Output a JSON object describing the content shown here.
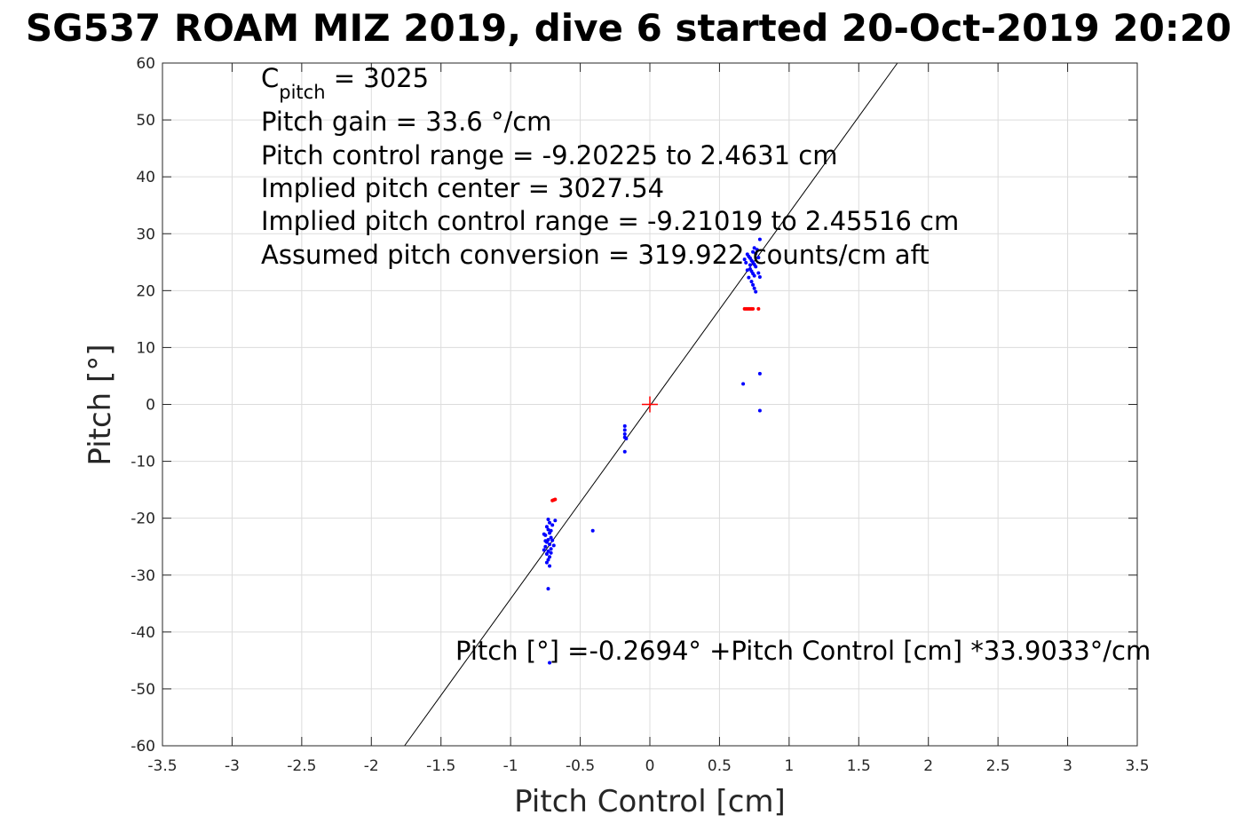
{
  "chart_data": {
    "type": "scatter",
    "title": "SG537 ROAM MIZ 2019, dive 6 started 20-Oct-2019 20:20",
    "xlabel": "Pitch Control [cm]",
    "ylabel": "Pitch [°]",
    "xlim": [
      -3.5,
      3.5
    ],
    "ylim": [
      -60,
      60
    ],
    "xticks": [
      -3.5,
      -3,
      -2.5,
      -2,
      -1.5,
      -1,
      -0.5,
      0,
      0.5,
      1,
      1.5,
      2,
      2.5,
      3,
      3.5
    ],
    "yticks": [
      -60,
      -50,
      -40,
      -30,
      -20,
      -10,
      0,
      10,
      20,
      30,
      40,
      50,
      60
    ],
    "xtick_labels": [
      "-3.5",
      "-3",
      "-2.5",
      "-2",
      "-1.5",
      "-1",
      "-0.5",
      "0",
      "0.5",
      "1",
      "1.5",
      "2",
      "2.5",
      "3",
      "3.5"
    ],
    "ytick_labels": [
      "-60",
      "-50",
      "-40",
      "-30",
      "-20",
      "-10",
      "0",
      "10",
      "20",
      "30",
      "40",
      "50",
      "60"
    ],
    "grid": true,
    "annotations": {
      "cpitch_base": "C",
      "cpitch_sub": "pitch",
      "cpitch_value": " = 3025",
      "lines": [
        "Pitch gain = 33.6 °/cm",
        "Pitch control range = -9.20225 to 2.4631 cm",
        "Implied pitch center = 3027.54",
        "Implied pitch control range = -9.21019 to 2.45516 cm",
        "Assumed pitch conversion = 319.922 counts/cm aft"
      ],
      "fit_equation": "Pitch [°] =-0.2694° +Pitch Control [cm] *33.9033°/cm"
    },
    "fit_line": {
      "intercept": -0.2694,
      "slope": 33.9033,
      "color": "#000000"
    },
    "center_marker": {
      "x": 0,
      "y": 0,
      "color": "#ff0000"
    },
    "series": [
      {
        "color": "#0000ff",
        "points": [
          [
            -0.74,
            -21.5
          ],
          [
            -0.73,
            -22.0
          ],
          [
            -0.72,
            -22.6
          ],
          [
            -0.75,
            -23.0
          ],
          [
            -0.71,
            -23.4
          ],
          [
            -0.73,
            -23.8
          ],
          [
            -0.74,
            -24.2
          ],
          [
            -0.72,
            -24.6
          ],
          [
            -0.75,
            -25.0
          ],
          [
            -0.71,
            -25.4
          ],
          [
            -0.73,
            -25.8
          ],
          [
            -0.74,
            -26.3
          ],
          [
            -0.72,
            -26.8
          ],
          [
            -0.73,
            -27.3
          ],
          [
            -0.71,
            -22.2
          ],
          [
            -0.75,
            -24.0
          ],
          [
            -0.72,
            -20.8
          ],
          [
            -0.7,
            -21.2
          ],
          [
            -0.73,
            -20.2
          ],
          [
            -0.76,
            -22.8
          ],
          [
            -0.7,
            -23.9
          ],
          [
            -0.74,
            -27.8
          ],
          [
            -0.72,
            -28.4
          ],
          [
            -0.69,
            -24.8
          ],
          [
            -0.68,
            -20.4
          ],
          [
            -0.76,
            -25.6
          ],
          [
            -0.71,
            -26.1
          ],
          [
            -0.73,
            -32.4
          ],
          [
            -0.72,
            -45.4
          ],
          [
            -0.41,
            -22.2
          ],
          [
            -0.18,
            -3.8
          ],
          [
            -0.18,
            -4.5
          ],
          [
            -0.18,
            -5.2
          ],
          [
            -0.18,
            -5.8
          ],
          [
            -0.18,
            -8.3
          ],
          [
            -0.17,
            -6.0
          ],
          [
            0.67,
            3.6
          ],
          [
            0.79,
            5.4
          ],
          [
            0.79,
            -1.1
          ],
          [
            0.79,
            29.0
          ],
          [
            0.7,
            26.4
          ],
          [
            0.71,
            26.0
          ],
          [
            0.72,
            25.7
          ],
          [
            0.73,
            25.3
          ],
          [
            0.74,
            25.0
          ],
          [
            0.75,
            24.6
          ],
          [
            0.76,
            24.2
          ],
          [
            0.72,
            23.8
          ],
          [
            0.73,
            23.4
          ],
          [
            0.74,
            23.0
          ],
          [
            0.75,
            22.6
          ],
          [
            0.71,
            22.3
          ],
          [
            0.72,
            24.5
          ],
          [
            0.74,
            26.8
          ],
          [
            0.76,
            26.5
          ],
          [
            0.78,
            25.8
          ],
          [
            0.69,
            24.9
          ],
          [
            0.7,
            23.6
          ],
          [
            0.78,
            23.1
          ],
          [
            0.73,
            21.6
          ],
          [
            0.74,
            21.0
          ],
          [
            0.75,
            20.4
          ],
          [
            0.76,
            19.8
          ],
          [
            0.79,
            22.4
          ],
          [
            0.68,
            25.5
          ],
          [
            0.77,
            27.2
          ],
          [
            0.75,
            27.5
          ]
        ]
      },
      {
        "color": "#ff0000",
        "points": [
          [
            -0.69,
            -16.8
          ],
          [
            -0.7,
            -16.9
          ],
          [
            -0.68,
            -16.7
          ],
          [
            0.68,
            16.8
          ],
          [
            0.69,
            16.8
          ],
          [
            0.7,
            16.8
          ],
          [
            0.71,
            16.8
          ],
          [
            0.72,
            16.8
          ],
          [
            0.73,
            16.8
          ],
          [
            0.74,
            16.8
          ],
          [
            0.78,
            16.8
          ]
        ]
      }
    ]
  }
}
